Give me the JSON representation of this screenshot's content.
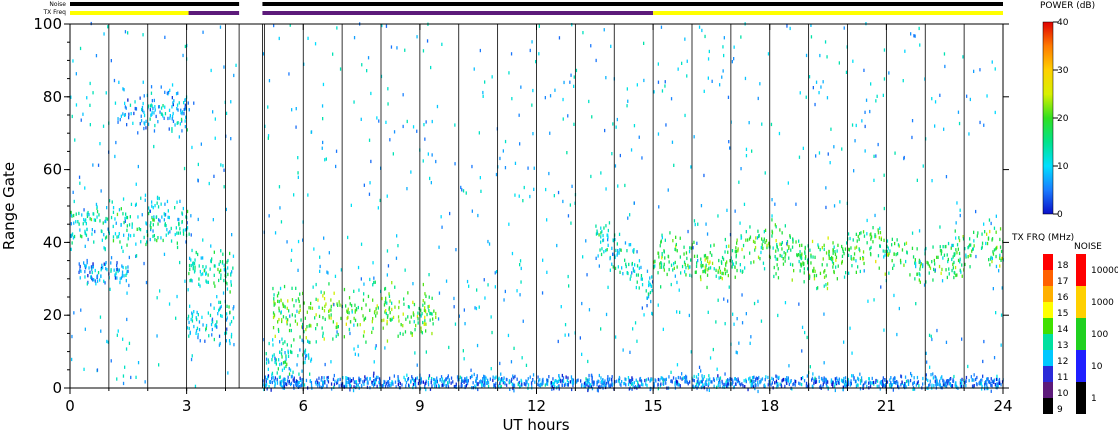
{
  "chart_data": {
    "type": "heatmap",
    "title": "",
    "xlabel": "UT hours",
    "ylabel": "Range Gate",
    "xlim": [
      0,
      24
    ],
    "ylim": [
      0,
      100
    ],
    "xticks": [
      "0",
      "3",
      "6",
      "9",
      "12",
      "15",
      "18",
      "21",
      "24"
    ],
    "yticks": [
      "0",
      "20",
      "40",
      "60",
      "80",
      "100"
    ],
    "vertical_scan_lines_every_hours": 1,
    "data_gap_hours": [
      4.35,
      4.95
    ],
    "status_bars": {
      "noise_label": "Noise",
      "txfreq_label": "TX Freq",
      "noise_color": "#000000",
      "txfreq_segments": [
        {
          "start": 0,
          "end": 3.05,
          "color": "#ffff00"
        },
        {
          "start": 3.05,
          "end": 4.35,
          "color": "#5c1a7a"
        },
        {
          "start": 4.95,
          "end": 15.0,
          "color": "#5c1a7a"
        },
        {
          "start": 15.0,
          "end": 24.0,
          "color": "#ffff00"
        }
      ]
    },
    "echo_regions": [
      {
        "label": "band ~45",
        "x": [
          0,
          3.1
        ],
        "y_center": 45,
        "y_spread": 6,
        "power_db": 12
      },
      {
        "label": "band ~32",
        "x": [
          0.2,
          1.5
        ],
        "y_center": 31,
        "y_spread": 3,
        "power_db": 8
      },
      {
        "label": "patch ~75",
        "x": [
          1.2,
          3.0
        ],
        "y_center": 75,
        "y_spread": 5,
        "power_db": 8
      },
      {
        "label": "patch ~32",
        "x": [
          3.0,
          4.2
        ],
        "y_center": 32,
        "y_spread": 4,
        "power_db": 14
      },
      {
        "label": "patch ~18",
        "x": [
          3.0,
          4.2
        ],
        "y_center": 18,
        "y_spread": 5,
        "power_db": 10
      },
      {
        "label": "blob ~20",
        "x": [
          5.2,
          9.4
        ],
        "y_center": 20,
        "y_spread": 6,
        "power_db": 20
      },
      {
        "label": "blob ~8",
        "x": [
          5.0,
          6.2
        ],
        "y_center": 8,
        "y_spread": 5,
        "power_db": 12
      },
      {
        "label": "ground ~1",
        "x": [
          4.95,
          24
        ],
        "y_center": 1,
        "y_spread": 1.5,
        "power_db": 6
      },
      {
        "label": "descending band",
        "x": [
          13.5,
          15.0
        ],
        "y_center": 32,
        "y_spread": 5,
        "power_db": 12
      },
      {
        "label": "band ~35",
        "x": [
          15.0,
          24.0
        ],
        "y_center": 35,
        "y_spread": 5,
        "power_db": 18
      }
    ],
    "colorbars": [
      {
        "title": "POWER (dB)",
        "min": 0,
        "max": 40,
        "ticks": [
          "0",
          "10",
          "20",
          "30",
          "40"
        ],
        "stops": [
          "#0a10c8",
          "#1a7cff",
          "#00e0ff",
          "#00e38a",
          "#30e020",
          "#d8f000",
          "#ffd000",
          "#ff7a00",
          "#e00000"
        ]
      },
      {
        "title": "TX FRQ (MHz)",
        "levels": [
          "9",
          "10",
          "11",
          "12",
          "13",
          "14",
          "15",
          "16",
          "17",
          "18"
        ],
        "colors": [
          "#000000",
          "#5c1a7a",
          "#2a2ad8",
          "#00c8ff",
          "#00e0a0",
          "#40e000",
          "#ffff00",
          "#ffb000",
          "#ff6000",
          "#ff0000"
        ]
      },
      {
        "title": "NOISE",
        "levels": [
          "1",
          "10",
          "100",
          "1000",
          "10000"
        ],
        "colors": [
          "#000000",
          "#2020ff",
          "#20d020",
          "#ffd000",
          "#ff0000"
        ]
      }
    ]
  }
}
